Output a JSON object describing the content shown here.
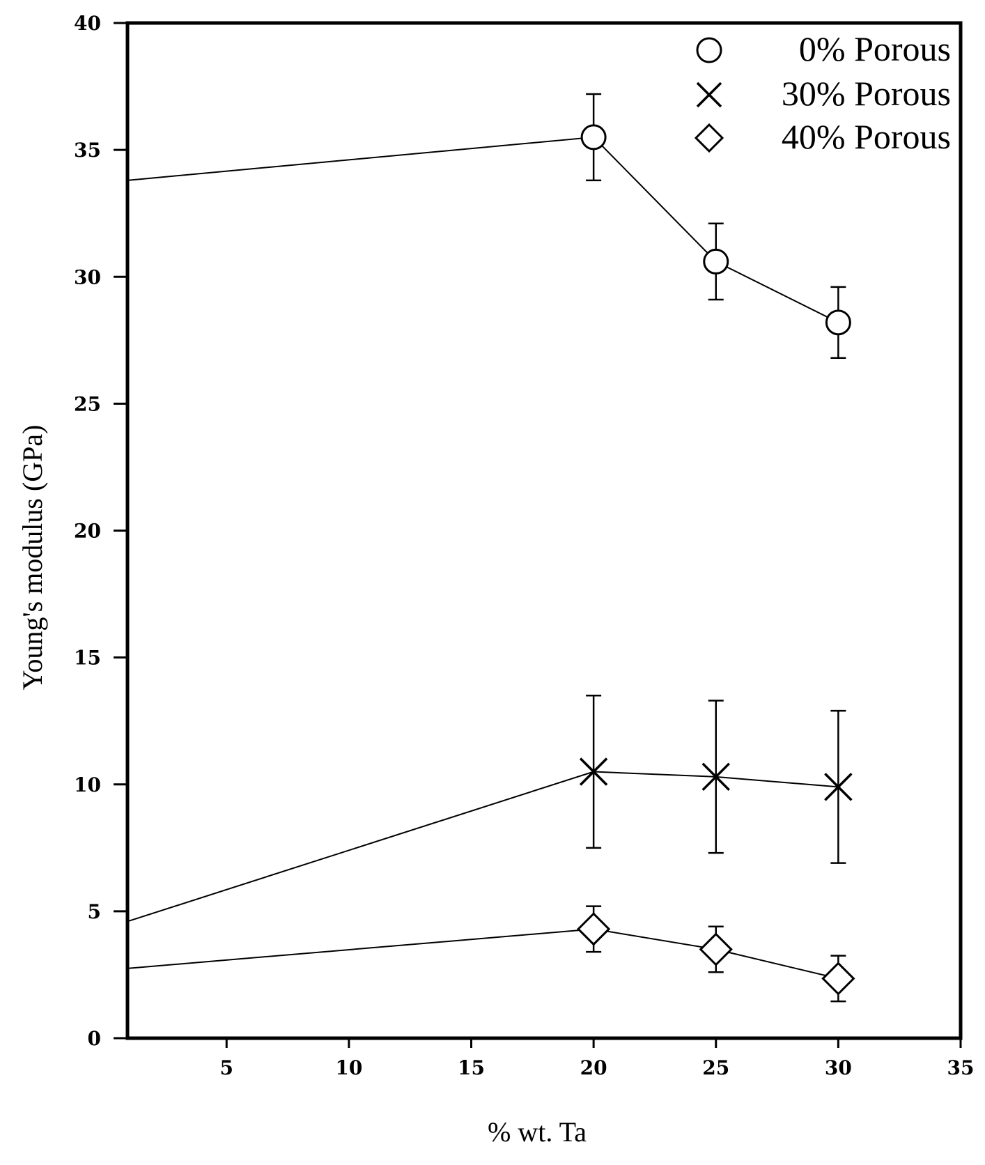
{
  "chart_data": {
    "type": "line",
    "title": "",
    "xlabel": "% wt. Ta",
    "ylabel": "Young's modulus (GPa)",
    "xlim": [
      0.95,
      35
    ],
    "ylim": [
      0,
      40
    ],
    "x_ticks": [
      5,
      10,
      15,
      20,
      25,
      30,
      35
    ],
    "y_ticks": [
      0,
      5,
      10,
      15,
      20,
      25,
      30,
      35,
      40
    ],
    "grid": false,
    "legend_position": "top-right",
    "series": [
      {
        "name": "0% Porous",
        "legend_label": "0% Porous",
        "marker": "circle",
        "x": [
          0.95,
          20,
          25,
          30
        ],
        "y": [
          33.8,
          35.5,
          30.6,
          28.2
        ],
        "error": [
          null,
          1.7,
          1.5,
          1.4
        ]
      },
      {
        "name": "30% Porous",
        "legend_label": "30% Porous",
        "marker": "x",
        "x": [
          0.95,
          20,
          25,
          30
        ],
        "y": [
          4.6,
          10.5,
          10.3,
          9.9
        ],
        "error": [
          null,
          3.0,
          3.0,
          3.0
        ]
      },
      {
        "name": "40% Porous",
        "legend_label": "40% Porous",
        "marker": "diamond",
        "x": [
          0.95,
          20,
          25,
          30
        ],
        "y": [
          2.75,
          4.3,
          3.5,
          2.35
        ],
        "error": [
          null,
          0.9,
          0.9,
          0.9
        ]
      }
    ]
  }
}
